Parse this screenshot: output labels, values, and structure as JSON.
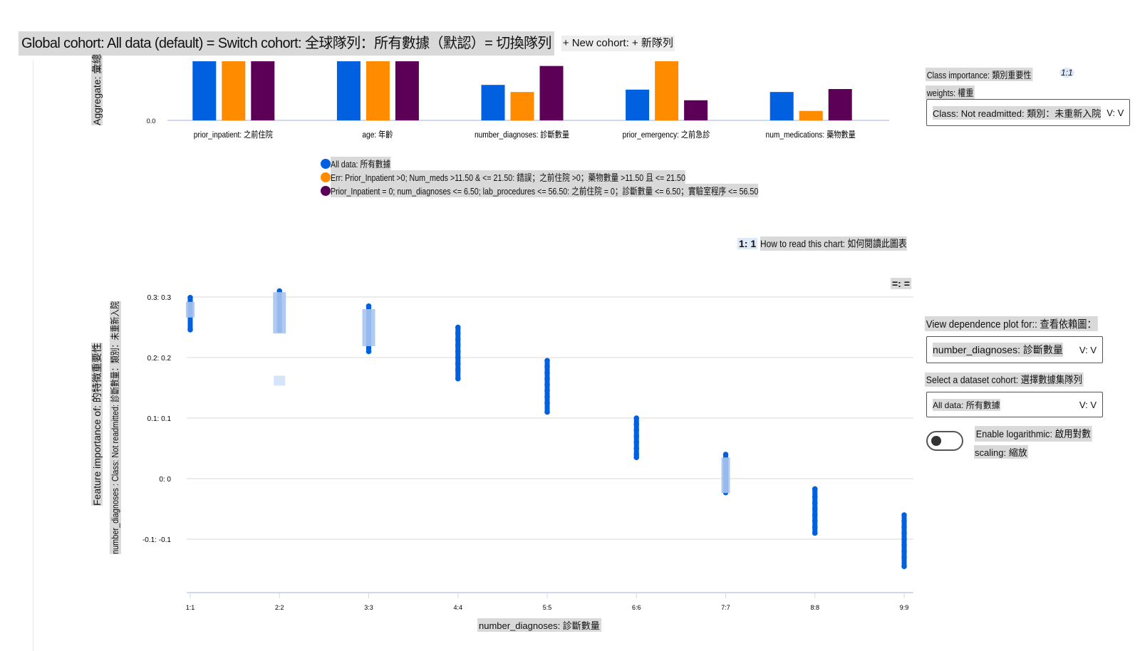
{
  "header": {
    "cohort_text": "Global cohort: All data (default) = Switch cohort: 全球隊列：所有數據（默認）= 切換隊列",
    "new_cohort": "+ New cohort: + 新隊列"
  },
  "colors": {
    "all_data": "#0060df",
    "err_cohort": "#ff8c00",
    "prior_cohort": "#5c0057",
    "grid": "#e6e6e6",
    "axis": "#d0d8f0"
  },
  "legend": [
    {
      "label": "All data: 所有數據",
      "color": "#0060df"
    },
    {
      "label": "Err: Prior_Inpatient >0; Num_meds >11.50 & <= 21.50: 錯誤；之前住院 >0；藥物數量 >11.50 且 <= 21.50",
      "color": "#ff8c00"
    },
    {
      "label": "Prior_Inpatient = 0; num_diagnoses <= 6.50; lab_procedures <= 56.50: 之前住院 = 0；診斷數量 <= 6.50；實驗室程序 <= 56.50",
      "color": "#5c0057"
    }
  ],
  "side": {
    "class_importance_label": "Class importance: 類別重要性",
    "class_importance_weights": "weights: 權重",
    "info_badge": "1:1",
    "class_select": "Class: Not readmitted: 類別：未重新入院",
    "chevron": "V: V",
    "dependence_label": "View dependence plot for:: 查看依賴圖：",
    "dependence_value": "number_diagnoses: 診斷數量",
    "cohort_label": "Select a dataset cohort: 選擇數據集隊列",
    "cohort_value": "All data: 所有數據",
    "log_label_1": "Enable logarithmic: 啟用對數",
    "log_label_2": "scaling: 縮放",
    "log_enabled": false
  },
  "how_to": {
    "badge": "1: 1",
    "label": "How to read this chart: 如何閱讀此圖表"
  },
  "menu_button": "=: =",
  "chart_data": [
    {
      "type": "bar",
      "ylabel": "Aggregate: 彙總",
      "y_tick_labels": [
        "0.0"
      ],
      "categories": [
        "prior_inpatient: 之前住院",
        "age: 年齡",
        "number_diagnoses: 診斷數量",
        "prior_emergency: 之前急診",
        "num_medications: 藥物數量"
      ],
      "series": [
        {
          "name": "All data: 所有數據",
          "values": [
            1.0,
            1.0,
            0.6,
            0.52,
            0.48
          ]
        },
        {
          "name": "Err: Prior_Inpatient >0; Num_meds >11.50 & <= 21.50",
          "values": [
            1.0,
            1.0,
            0.48,
            1.0,
            0.16
          ]
        },
        {
          "name": "Prior_Inpatient = 0; num_diagnoses <= 6.50; lab_procedures <= 56.50",
          "values": [
            1.0,
            1.0,
            0.92,
            0.34,
            0.53
          ]
        }
      ],
      "ylim": [
        0,
        1.0
      ]
    },
    {
      "type": "scatter",
      "ylabel_line1": "Feature importance of: 的特徵重要性",
      "ylabel_line2": "number_diagnoses : Class: Not readmitted: 診斷數量：類別：未重新入院",
      "xlabel": "number_diagnoses: 診斷數量",
      "x_ticks": [
        1,
        2,
        3,
        4,
        5,
        6,
        7,
        8,
        9
      ],
      "x_tick_labels": [
        "1:1",
        "2:2",
        "3:3",
        "4:4",
        "5:5",
        "6:6",
        "7:7",
        "8:8",
        "9:9"
      ],
      "y_ticks": [
        0.3,
        0.2,
        0.1,
        0,
        -0.1
      ],
      "y_tick_labels": [
        "0.3: 0.3",
        "0.2: 0.2",
        "0.1: 0.1",
        "0: 0",
        "-0.1: -0.1"
      ],
      "ylim": [
        -0.19,
        0.32
      ],
      "xlim": [
        1,
        9
      ],
      "points": [
        {
          "x": 1,
          "y": [
            0.299,
            0.292,
            0.285,
            0.246
          ]
        },
        {
          "x": 2,
          "y": [
            0.31,
            0.3,
            0.29,
            0.28,
            0.27,
            0.26,
            0.25,
            0.245
          ]
        },
        {
          "x": 3,
          "y": [
            0.285,
            0.275,
            0.26,
            0.245,
            0.23,
            0.22,
            0.21
          ]
        },
        {
          "x": 4,
          "y": [
            0.25,
            0.24,
            0.23,
            0.22,
            0.21,
            0.2,
            0.19,
            0.18,
            0.165
          ]
        },
        {
          "x": 5,
          "y": [
            0.195,
            0.185,
            0.175,
            0.165,
            0.155,
            0.145,
            0.135,
            0.125,
            0.11
          ]
        },
        {
          "x": 6,
          "y": [
            0.1,
            0.09,
            0.08,
            0.07,
            0.06,
            0.05,
            0.04,
            0.035
          ]
        },
        {
          "x": 7,
          "y": [
            0.04,
            0.03,
            0.02,
            0.01,
            0,
            -0.01,
            -0.023
          ]
        },
        {
          "x": 8,
          "y": [
            -0.017,
            -0.03,
            -0.04,
            -0.05,
            -0.06,
            -0.07,
            -0.08,
            -0.09
          ]
        },
        {
          "x": 9,
          "y": [
            -0.06,
            -0.07,
            -0.08,
            -0.09,
            -0.1,
            -0.11,
            -0.12,
            -0.13,
            -0.145
          ]
        }
      ]
    }
  ]
}
